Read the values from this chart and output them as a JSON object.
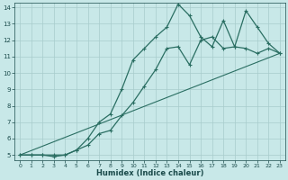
{
  "xlabel": "Humidex (Indice chaleur)",
  "xlim": [
    -0.5,
    23.5
  ],
  "ylim": [
    4.7,
    14.3
  ],
  "bg_color": "#c8e8e8",
  "grid_color": "#a8cccc",
  "line_color": "#2a6e62",
  "line1_x": [
    0,
    1,
    2,
    3,
    4,
    5,
    6,
    7,
    8,
    9,
    10,
    11,
    12,
    13,
    14,
    15,
    16,
    17,
    18,
    19,
    20,
    21,
    22,
    23
  ],
  "line1_y": [
    5,
    5,
    5,
    4.9,
    5.0,
    5.3,
    5.6,
    6.3,
    6.5,
    7.4,
    8.2,
    9.2,
    10.2,
    11.5,
    11.6,
    10.5,
    12.0,
    12.2,
    11.5,
    11.6,
    11.5,
    11.2,
    11.5,
    11.2
  ],
  "line2_x": [
    0,
    1,
    2,
    3,
    4,
    5,
    6,
    7,
    8,
    9,
    10,
    11,
    12,
    13,
    14,
    15,
    16,
    17,
    18,
    19,
    20,
    21,
    22,
    23
  ],
  "line2_y": [
    5,
    5,
    5,
    5,
    5,
    5.3,
    6.0,
    7.0,
    7.5,
    9.0,
    10.8,
    11.5,
    12.2,
    12.8,
    14.2,
    13.5,
    12.2,
    11.6,
    13.2,
    11.6,
    13.8,
    12.8,
    11.8,
    11.2
  ],
  "line3_x": [
    0,
    23
  ],
  "line3_y": [
    5,
    11.2
  ],
  "xtick_fontsize": 4.5,
  "ytick_fontsize": 5.0,
  "xlabel_fontsize": 6.0
}
